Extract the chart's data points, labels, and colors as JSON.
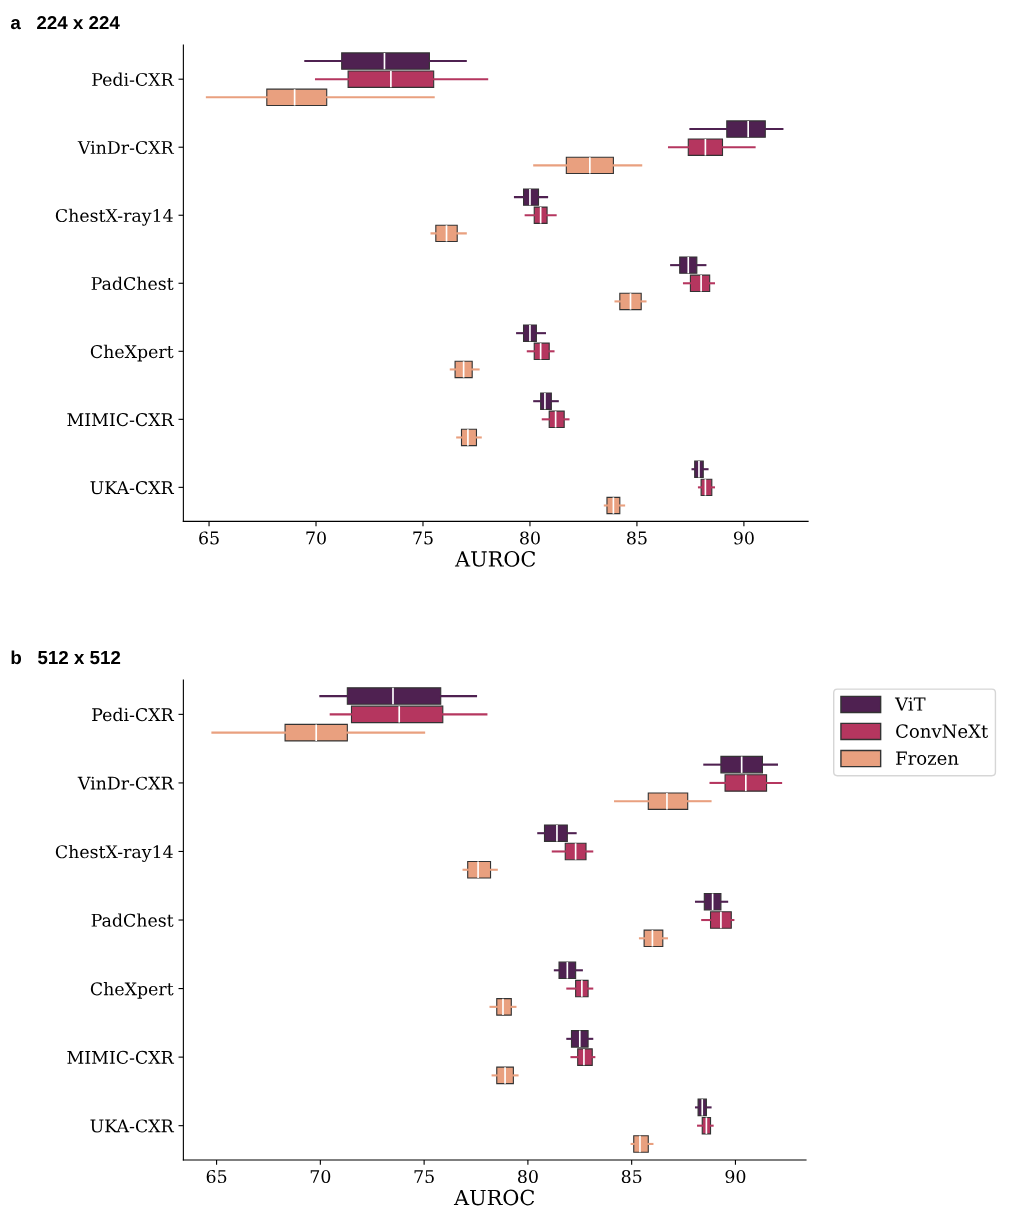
{
  "chart_data": [
    {
      "type": "box",
      "orientation": "horizontal",
      "title": "a   224 x 224",
      "xlabel": "AUROC",
      "categories": [
        "Pedi-CXR",
        "VinDr-CXR",
        "ChestX-ray14",
        "PadChest",
        "CheXpert",
        "MIMIC-CXR",
        "UKA-CXR"
      ],
      "xlim": [
        63.8,
        93.0
      ],
      "xticks": [
        65,
        70,
        75,
        80,
        85,
        90
      ],
      "grid": false,
      "legend": false,
      "series": [
        {
          "color": "#4f2151",
          "boxes": [
            {
              "low": 69.5,
              "q1": 71.2,
              "median": 73.2,
              "q3": 75.3,
              "high": 77.0
            },
            {
              "low": 87.5,
              "q1": 89.2,
              "median": 90.2,
              "q3": 91.0,
              "high": 91.8
            },
            {
              "low": 79.3,
              "q1": 79.7,
              "median": 80.0,
              "q3": 80.4,
              "high": 80.8
            },
            {
              "low": 86.6,
              "q1": 87.0,
              "median": 87.4,
              "q3": 87.8,
              "high": 88.2
            },
            {
              "low": 79.4,
              "q1": 79.7,
              "median": 80.0,
              "q3": 80.3,
              "high": 80.7
            },
            {
              "low": 80.2,
              "q1": 80.5,
              "median": 80.7,
              "q3": 81.0,
              "high": 81.3
            },
            {
              "low": 87.6,
              "q1": 87.7,
              "median": 87.9,
              "q3": 88.1,
              "high": 88.3
            }
          ]
        },
        {
          "color": "#b5365f",
          "boxes": [
            {
              "low": 70.0,
              "q1": 71.5,
              "median": 73.5,
              "q3": 75.5,
              "high": 78.0
            },
            {
              "low": 86.5,
              "q1": 87.4,
              "median": 88.2,
              "q3": 89.0,
              "high": 90.5
            },
            {
              "low": 79.8,
              "q1": 80.2,
              "median": 80.5,
              "q3": 80.8,
              "high": 81.2
            },
            {
              "low": 87.2,
              "q1": 87.5,
              "median": 88.0,
              "q3": 88.4,
              "high": 88.6
            },
            {
              "low": 79.9,
              "q1": 80.2,
              "median": 80.5,
              "q3": 80.9,
              "high": 81.1
            },
            {
              "low": 80.6,
              "q1": 80.9,
              "median": 81.2,
              "q3": 81.6,
              "high": 81.8
            },
            {
              "low": 87.9,
              "q1": 88.0,
              "median": 88.2,
              "q3": 88.5,
              "high": 88.6
            }
          ]
        },
        {
          "color": "#e9a07f",
          "boxes": [
            {
              "low": 64.9,
              "q1": 67.7,
              "median": 69.0,
              "q3": 70.5,
              "high": 75.5
            },
            {
              "low": 80.2,
              "q1": 81.7,
              "median": 82.8,
              "q3": 83.9,
              "high": 85.2
            },
            {
              "low": 75.4,
              "q1": 75.6,
              "median": 76.1,
              "q3": 76.6,
              "high": 77.0
            },
            {
              "low": 84.0,
              "q1": 84.2,
              "median": 84.7,
              "q3": 85.2,
              "high": 85.4
            },
            {
              "low": 76.3,
              "q1": 76.5,
              "median": 76.9,
              "q3": 77.3,
              "high": 77.6
            },
            {
              "low": 76.6,
              "q1": 76.8,
              "median": 77.1,
              "q3": 77.5,
              "high": 77.7
            },
            {
              "low": 83.5,
              "q1": 83.6,
              "median": 83.9,
              "q3": 84.2,
              "high": 84.4
            }
          ]
        }
      ]
    },
    {
      "type": "box",
      "orientation": "horizontal",
      "title": "b   512 x 512",
      "xlabel": "AUROC",
      "categories": [
        "Pedi-CXR",
        "VinDr-CXR",
        "ChestX-ray14",
        "PadChest",
        "CheXpert",
        "MIMIC-CXR",
        "UKA-CXR"
      ],
      "xlim": [
        63.4,
        93.4
      ],
      "xticks": [
        65,
        70,
        75,
        80,
        85,
        90
      ],
      "grid": false,
      "legend": "right",
      "series": [
        {
          "name": "ViT",
          "color": "#4f2151",
          "boxes": [
            {
              "low": 70.0,
              "q1": 71.3,
              "median": 73.5,
              "q3": 75.8,
              "high": 77.5
            },
            {
              "low": 88.5,
              "q1": 89.3,
              "median": 90.3,
              "q3": 91.3,
              "high": 92.0
            },
            {
              "low": 80.5,
              "q1": 80.8,
              "median": 81.4,
              "q3": 81.9,
              "high": 82.3
            },
            {
              "low": 88.1,
              "q1": 88.5,
              "median": 88.9,
              "q3": 89.3,
              "high": 89.6
            },
            {
              "low": 81.3,
              "q1": 81.5,
              "median": 81.9,
              "q3": 82.3,
              "high": 82.6
            },
            {
              "low": 81.9,
              "q1": 82.1,
              "median": 82.5,
              "q3": 82.9,
              "high": 83.1
            },
            {
              "low": 88.1,
              "q1": 88.2,
              "median": 88.4,
              "q3": 88.6,
              "high": 88.8
            }
          ]
        },
        {
          "name": "ConvNeXt",
          "color": "#b5365f",
          "boxes": [
            {
              "low": 70.5,
              "q1": 71.5,
              "median": 73.8,
              "q3": 75.9,
              "high": 78.0
            },
            {
              "low": 88.8,
              "q1": 89.5,
              "median": 90.5,
              "q3": 91.5,
              "high": 92.2
            },
            {
              "low": 81.2,
              "q1": 81.8,
              "median": 82.3,
              "q3": 82.8,
              "high": 83.1
            },
            {
              "low": 88.4,
              "q1": 88.8,
              "median": 89.3,
              "q3": 89.8,
              "high": 89.9
            },
            {
              "low": 81.9,
              "q1": 82.3,
              "median": 82.6,
              "q3": 82.9,
              "high": 83.1
            },
            {
              "low": 82.1,
              "q1": 82.4,
              "median": 82.7,
              "q3": 83.1,
              "high": 83.2
            },
            {
              "low": 88.2,
              "q1": 88.4,
              "median": 88.6,
              "q3": 88.8,
              "high": 88.9
            }
          ]
        },
        {
          "name": "Frozen",
          "color": "#e9a07f",
          "boxes": [
            {
              "low": 64.8,
              "q1": 68.3,
              "median": 69.8,
              "q3": 71.3,
              "high": 75.0
            },
            {
              "low": 84.2,
              "q1": 85.8,
              "median": 86.7,
              "q3": 87.7,
              "high": 88.8
            },
            {
              "low": 76.9,
              "q1": 77.1,
              "median": 77.6,
              "q3": 78.2,
              "high": 78.5
            },
            {
              "low": 85.4,
              "q1": 85.6,
              "median": 86.0,
              "q3": 86.5,
              "high": 86.7
            },
            {
              "low": 78.2,
              "q1": 78.5,
              "median": 78.8,
              "q3": 79.2,
              "high": 79.4
            },
            {
              "low": 78.3,
              "q1": 78.5,
              "median": 78.9,
              "q3": 79.3,
              "high": 79.5
            },
            {
              "low": 85.0,
              "q1": 85.1,
              "median": 85.4,
              "q3": 85.8,
              "high": 86.0
            }
          ]
        }
      ]
    }
  ]
}
